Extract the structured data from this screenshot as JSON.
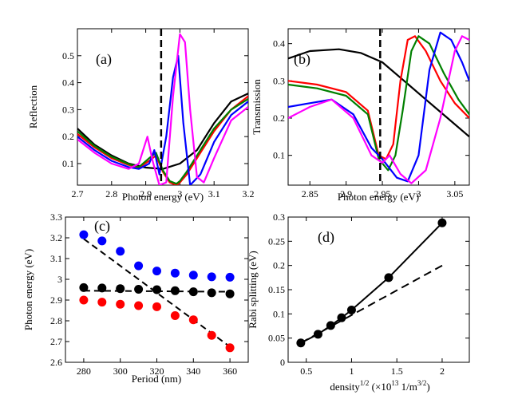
{
  "chart_data": [
    {
      "type": "line",
      "panel_label": "(a)",
      "xlabel": "Photon energy (eV)",
      "ylabel": "Reflection",
      "xlim": [
        2.7,
        3.2
      ],
      "ylim": [
        0.02,
        0.6
      ],
      "xticks": [
        2.7,
        2.8,
        2.9,
        3.0,
        3.1,
        3.2
      ],
      "xtick_labels": [
        "2.7",
        "2.8",
        "2.9",
        "3",
        "3.1",
        "3.2"
      ],
      "yticks": [
        0.1,
        0.2,
        0.3,
        0.4,
        0.5
      ],
      "ytick_labels": [
        "0.1",
        "0.2",
        "0.3",
        "0.4",
        "0.5"
      ],
      "vline": 2.945,
      "series": [
        {
          "name": "black",
          "color": "#000000",
          "x": [
            2.7,
            2.75,
            2.8,
            2.85,
            2.9,
            2.95,
            3.0,
            3.05,
            3.1,
            3.15,
            3.2
          ],
          "y": [
            0.23,
            0.17,
            0.13,
            0.1,
            0.085,
            0.08,
            0.1,
            0.15,
            0.25,
            0.33,
            0.36
          ]
        },
        {
          "name": "red",
          "color": "#ff0000",
          "x": [
            2.7,
            2.75,
            2.8,
            2.85,
            2.88,
            2.91,
            2.93,
            2.95,
            2.97,
            2.99,
            3.0,
            3.02,
            3.05,
            3.1,
            3.15,
            3.2
          ],
          "y": [
            0.21,
            0.16,
            0.12,
            0.095,
            0.085,
            0.11,
            0.13,
            0.07,
            0.03,
            0.02,
            0.03,
            0.06,
            0.12,
            0.22,
            0.3,
            0.35
          ]
        },
        {
          "name": "green",
          "color": "#008000",
          "x": [
            2.7,
            2.75,
            2.8,
            2.85,
            2.88,
            2.91,
            2.93,
            2.95,
            2.97,
            2.99,
            3.0,
            3.02,
            3.05,
            3.1,
            3.15,
            3.2
          ],
          "y": [
            0.22,
            0.165,
            0.125,
            0.098,
            0.087,
            0.12,
            0.14,
            0.075,
            0.035,
            0.025,
            0.035,
            0.07,
            0.13,
            0.23,
            0.3,
            0.34
          ]
        },
        {
          "name": "blue",
          "color": "#0000ff",
          "x": [
            2.7,
            2.75,
            2.8,
            2.85,
            2.88,
            2.91,
            2.925,
            2.94,
            2.96,
            2.98,
            2.995,
            3.01,
            3.03,
            3.06,
            3.1,
            3.15,
            3.2
          ],
          "y": [
            0.2,
            0.15,
            0.11,
            0.087,
            0.08,
            0.1,
            0.15,
            0.06,
            0.2,
            0.42,
            0.5,
            0.25,
            0.02,
            0.06,
            0.18,
            0.28,
            0.33
          ]
        },
        {
          "name": "magenta",
          "color": "#ff00ff",
          "x": [
            2.7,
            2.75,
            2.8,
            2.85,
            2.88,
            2.905,
            2.92,
            2.94,
            2.96,
            2.98,
            3.0,
            3.015,
            3.03,
            3.05,
            3.07,
            3.1,
            3.15,
            3.2
          ],
          "y": [
            0.19,
            0.14,
            0.1,
            0.08,
            0.1,
            0.2,
            0.11,
            0.02,
            0.03,
            0.35,
            0.58,
            0.55,
            0.3,
            0.05,
            0.03,
            0.12,
            0.26,
            0.31
          ]
        }
      ]
    },
    {
      "type": "line",
      "panel_label": "(b)",
      "xlabel": "Photon energy (eV)",
      "ylabel": "Transmission",
      "xlim": [
        2.82,
        3.07
      ],
      "ylim": [
        0.02,
        0.44
      ],
      "xticks": [
        2.85,
        2.9,
        2.95,
        3.0,
        3.05
      ],
      "xtick_labels": [
        "2.85",
        "2.9",
        "2.95",
        "3",
        "3.05"
      ],
      "yticks": [
        0.1,
        0.2,
        0.3,
        0.4
      ],
      "ytick_labels": [
        "0.1",
        "0.2",
        "0.3",
        "0.4"
      ],
      "vline": 2.947,
      "series": [
        {
          "name": "black",
          "color": "#000000",
          "x": [
            2.82,
            2.85,
            2.89,
            2.92,
            2.95,
            2.98,
            3.01,
            3.04,
            3.07
          ],
          "y": [
            0.36,
            0.38,
            0.385,
            0.375,
            0.35,
            0.3,
            0.25,
            0.2,
            0.15
          ]
        },
        {
          "name": "red",
          "color": "#ff0000",
          "x": [
            2.82,
            2.86,
            2.9,
            2.93,
            2.945,
            2.955,
            2.965,
            2.975,
            2.985,
            2.995,
            3.01,
            3.03,
            3.05,
            3.07
          ],
          "y": [
            0.3,
            0.29,
            0.27,
            0.22,
            0.1,
            0.09,
            0.13,
            0.3,
            0.41,
            0.42,
            0.38,
            0.3,
            0.24,
            0.2
          ]
        },
        {
          "name": "green",
          "color": "#008000",
          "x": [
            2.82,
            2.86,
            2.9,
            2.93,
            2.945,
            2.958,
            2.968,
            2.978,
            2.99,
            3.0,
            3.015,
            3.035,
            3.055,
            3.07
          ],
          "y": [
            0.29,
            0.28,
            0.26,
            0.21,
            0.09,
            0.06,
            0.1,
            0.22,
            0.38,
            0.42,
            0.4,
            0.32,
            0.25,
            0.21
          ]
        },
        {
          "name": "blue",
          "color": "#0000ff",
          "x": [
            2.82,
            2.85,
            2.88,
            2.91,
            2.935,
            2.95,
            2.97,
            2.985,
            3.0,
            3.015,
            3.03,
            3.045,
            3.06,
            3.07
          ],
          "y": [
            0.23,
            0.24,
            0.25,
            0.21,
            0.12,
            0.09,
            0.04,
            0.03,
            0.1,
            0.33,
            0.43,
            0.41,
            0.35,
            0.3
          ]
        },
        {
          "name": "magenta",
          "color": "#ff00ff",
          "x": [
            2.82,
            2.85,
            2.88,
            2.91,
            2.935,
            2.95,
            2.96,
            2.975,
            2.99,
            3.01,
            3.03,
            3.05,
            3.06,
            3.07
          ],
          "y": [
            0.2,
            0.23,
            0.25,
            0.2,
            0.1,
            0.08,
            0.1,
            0.05,
            0.025,
            0.06,
            0.2,
            0.38,
            0.42,
            0.41
          ]
        }
      ]
    },
    {
      "type": "scatter",
      "panel_label": "(c)",
      "xlabel": "Period (nm)",
      "ylabel": "Photon energy (eV)",
      "xlim": [
        270,
        370
      ],
      "ylim": [
        2.6,
        3.3
      ],
      "xticks": [
        280,
        300,
        320,
        340,
        360
      ],
      "xtick_labels": [
        "280",
        "300",
        "320",
        "340",
        "360"
      ],
      "yticks": [
        2.6,
        2.7,
        2.8,
        2.9,
        3.0,
        3.1,
        3.2,
        3.3
      ],
      "ytick_labels": [
        "2.6",
        "2.7",
        "2.8",
        "2.9",
        "3",
        "3.1",
        "3.2",
        "3.3"
      ],
      "x": [
        280,
        290,
        300,
        310,
        320,
        330,
        340,
        350,
        360
      ],
      "series": [
        {
          "name": "blue",
          "color": "#0000ff",
          "values": [
            3.215,
            3.185,
            3.135,
            3.065,
            3.04,
            3.03,
            3.02,
            3.012,
            3.01
          ]
        },
        {
          "name": "black",
          "color": "#000000",
          "values": [
            2.96,
            2.958,
            2.955,
            2.952,
            2.95,
            2.945,
            2.94,
            2.935,
            2.93
          ]
        },
        {
          "name": "red",
          "color": "#ff0000",
          "values": [
            2.9,
            2.89,
            2.88,
            2.873,
            2.868,
            2.825,
            2.805,
            2.73,
            2.67
          ]
        }
      ],
      "dashed_lines": [
        {
          "x": [
            280,
            360
          ],
          "y": [
            3.195,
            2.675
          ]
        },
        {
          "x": [
            280,
            360
          ],
          "y": [
            2.945,
            2.94
          ]
        }
      ]
    },
    {
      "type": "scatter",
      "panel_label": "(d)",
      "xlabel": "density",
      "xlabel_sup1": "1/2",
      "xlabel_mid": " (×10",
      "xlabel_sup2": "13",
      "xlabel_unit": " 1/m",
      "xlabel_sup3": "3/2",
      "xlabel_end": ")",
      "ylabel": "Rabi splitting (eV)",
      "xlim": [
        0.3,
        2.3
      ],
      "ylim": [
        0,
        0.3
      ],
      "xticks": [
        0.5,
        1.0,
        1.5,
        2.0
      ],
      "xtick_labels": [
        "0.5",
        "1",
        "1.5",
        "2"
      ],
      "yticks": [
        0,
        0.05,
        0.1,
        0.15,
        0.2,
        0.25,
        0.3
      ],
      "ytick_labels": [
        "0",
        "0.05",
        "0.1",
        "0.15",
        "0.2",
        "0.25",
        "0.3"
      ],
      "x": [
        0.44,
        0.63,
        0.77,
        0.89,
        1.0,
        1.41,
        2.0
      ],
      "values": [
        0.04,
        0.058,
        0.076,
        0.092,
        0.108,
        0.175,
        0.288
      ],
      "dashed_line": {
        "x": [
          0.44,
          2.0
        ],
        "y": [
          0.04,
          0.2
        ]
      }
    }
  ]
}
